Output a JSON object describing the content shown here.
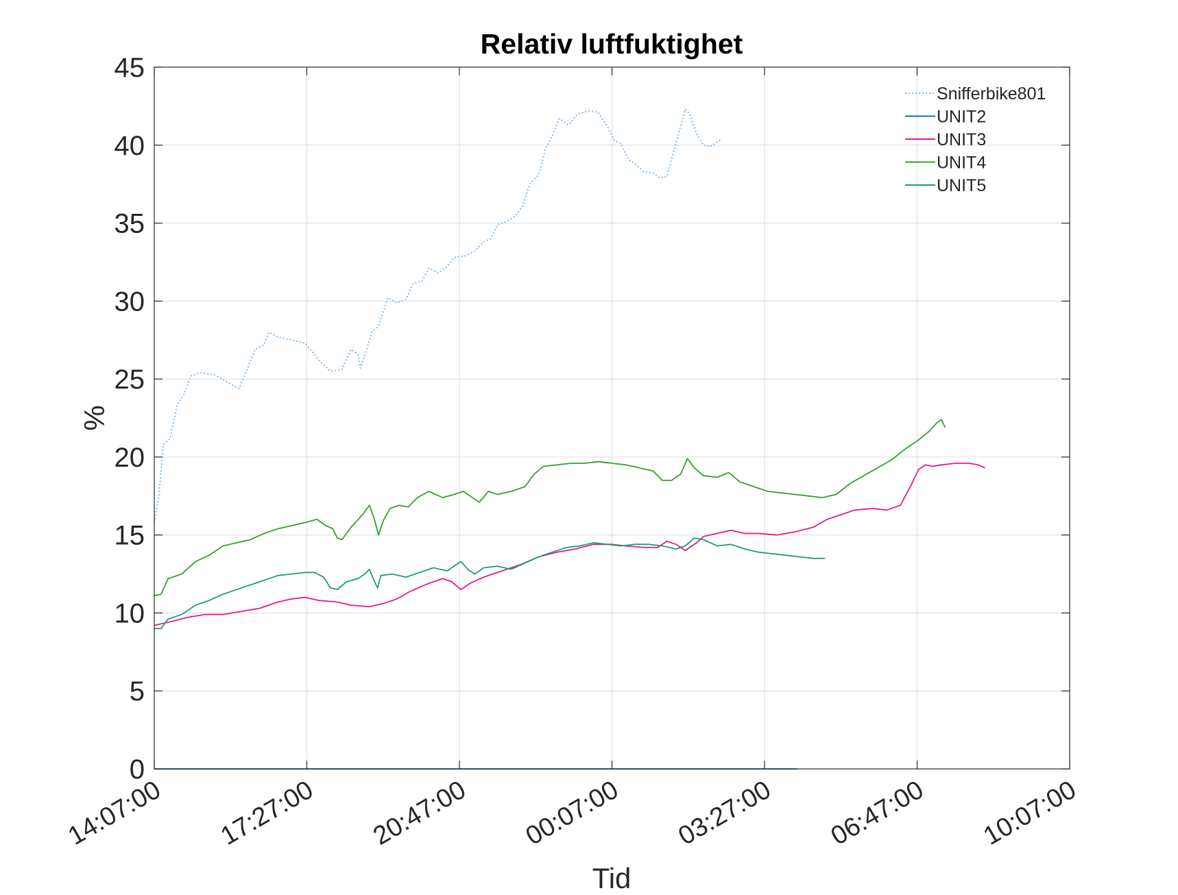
{
  "chart_data": {
    "type": "line",
    "title": "Relativ luftfuktighet",
    "xlabel": "Tid",
    "ylabel": "%",
    "ylim": [
      0,
      45
    ],
    "xlim": [
      "14:07:00",
      "10:07:00 (+1 day)"
    ],
    "x_unit": "hours elapsed since 14:07:00",
    "x_ticks": [
      {
        "label": "14:07:00",
        "value": 0
      },
      {
        "label": "17:27:00",
        "value": 3.333
      },
      {
        "label": "20:47:00",
        "value": 6.667
      },
      {
        "label": "00:07:00",
        "value": 10
      },
      {
        "label": "03:27:00",
        "value": 13.333
      },
      {
        "label": "06:47:00",
        "value": 16.667
      },
      {
        "label": "10:07:00",
        "value": 20
      }
    ],
    "y_ticks": [
      0,
      5,
      10,
      15,
      20,
      25,
      30,
      35,
      40,
      45
    ],
    "grid": true,
    "legend_position": "top-right",
    "series": [
      {
        "name": "Snifferbike801",
        "color": "#7fb8e8",
        "style": "dotted",
        "points": [
          [
            0,
            15.8
          ],
          [
            0.1,
            17.5
          ],
          [
            0.2,
            20.8
          ],
          [
            0.35,
            21.2
          ],
          [
            0.5,
            23.4
          ],
          [
            0.65,
            24.0
          ],
          [
            0.8,
            25.2
          ],
          [
            1.0,
            25.4
          ],
          [
            1.3,
            25.3
          ],
          [
            1.6,
            24.8
          ],
          [
            1.85,
            24.4
          ],
          [
            2.0,
            25.4
          ],
          [
            2.2,
            26.9
          ],
          [
            2.4,
            27.2
          ],
          [
            2.5,
            28.0
          ],
          [
            2.7,
            27.7
          ],
          [
            3.0,
            27.5
          ],
          [
            3.3,
            27.3
          ],
          [
            3.6,
            26.2
          ],
          [
            3.85,
            25.5
          ],
          [
            4.1,
            25.6
          ],
          [
            4.2,
            26.3
          ],
          [
            4.3,
            26.9
          ],
          [
            4.45,
            26.6
          ],
          [
            4.5,
            25.7
          ],
          [
            4.6,
            26.5
          ],
          [
            4.75,
            28.0
          ],
          [
            4.9,
            28.4
          ],
          [
            5.0,
            29.3
          ],
          [
            5.1,
            30.2
          ],
          [
            5.3,
            29.9
          ],
          [
            5.5,
            30.1
          ],
          [
            5.65,
            31.1
          ],
          [
            5.85,
            31.3
          ],
          [
            6.0,
            32.1
          ],
          [
            6.2,
            31.8
          ],
          [
            6.4,
            32.2
          ],
          [
            6.55,
            32.8
          ],
          [
            6.8,
            32.9
          ],
          [
            7.0,
            33.2
          ],
          [
            7.2,
            33.8
          ],
          [
            7.35,
            34.0
          ],
          [
            7.5,
            34.9
          ],
          [
            7.7,
            35.1
          ],
          [
            7.9,
            35.5
          ],
          [
            8.05,
            36.1
          ],
          [
            8.2,
            37.5
          ],
          [
            8.4,
            38.1
          ],
          [
            8.55,
            39.8
          ],
          [
            8.7,
            40.6
          ],
          [
            8.85,
            41.7
          ],
          [
            9.05,
            41.3
          ],
          [
            9.25,
            42.0
          ],
          [
            9.5,
            42.2
          ],
          [
            9.7,
            42.1
          ],
          [
            9.9,
            41.2
          ],
          [
            10.05,
            40.3
          ],
          [
            10.2,
            40.1
          ],
          [
            10.35,
            39.1
          ],
          [
            10.5,
            38.8
          ],
          [
            10.7,
            38.3
          ],
          [
            10.9,
            38.2
          ],
          [
            11.05,
            37.9
          ],
          [
            11.2,
            38.0
          ],
          [
            11.35,
            39.6
          ],
          [
            11.5,
            41.2
          ],
          [
            11.6,
            42.3
          ],
          [
            11.7,
            42.0
          ],
          [
            11.85,
            40.7
          ],
          [
            12.0,
            40.0
          ],
          [
            12.15,
            39.9
          ],
          [
            12.3,
            40.2
          ],
          [
            12.4,
            40.4
          ]
        ]
      },
      {
        "name": "UNIT2",
        "color": "#0072bd",
        "style": "solid",
        "points": [
          [
            0,
            0
          ],
          [
            14.05,
            0
          ]
        ]
      },
      {
        "name": "UNIT3",
        "color": "#e6198c",
        "style": "solid",
        "points": [
          [
            0,
            9.2
          ],
          [
            0.3,
            9.4
          ],
          [
            0.7,
            9.7
          ],
          [
            1.1,
            9.9
          ],
          [
            1.5,
            9.9
          ],
          [
            1.9,
            10.1
          ],
          [
            2.3,
            10.3
          ],
          [
            2.7,
            10.7
          ],
          [
            3.0,
            10.9
          ],
          [
            3.3,
            11.0
          ],
          [
            3.6,
            10.8
          ],
          [
            4.0,
            10.7
          ],
          [
            4.3,
            10.5
          ],
          [
            4.7,
            10.4
          ],
          [
            5.0,
            10.6
          ],
          [
            5.3,
            10.9
          ],
          [
            5.6,
            11.4
          ],
          [
            6.0,
            11.9
          ],
          [
            6.3,
            12.2
          ],
          [
            6.5,
            12.0
          ],
          [
            6.7,
            11.5
          ],
          [
            6.9,
            11.9
          ],
          [
            7.2,
            12.3
          ],
          [
            7.6,
            12.7
          ],
          [
            8.0,
            13.1
          ],
          [
            8.4,
            13.6
          ],
          [
            8.8,
            13.9
          ],
          [
            9.2,
            14.1
          ],
          [
            9.6,
            14.4
          ],
          [
            10.0,
            14.4
          ],
          [
            10.3,
            14.3
          ],
          [
            10.7,
            14.2
          ],
          [
            11.0,
            14.2
          ],
          [
            11.2,
            14.6
          ],
          [
            11.4,
            14.4
          ],
          [
            11.6,
            14.0
          ],
          [
            11.85,
            14.5
          ],
          [
            12.0,
            14.9
          ],
          [
            12.3,
            15.1
          ],
          [
            12.6,
            15.3
          ],
          [
            12.9,
            15.1
          ],
          [
            13.2,
            15.1
          ],
          [
            13.6,
            15.0
          ],
          [
            14.0,
            15.2
          ],
          [
            14.4,
            15.5
          ],
          [
            14.7,
            16.0
          ],
          [
            15.0,
            16.3
          ],
          [
            15.3,
            16.6
          ],
          [
            15.7,
            16.7
          ],
          [
            16.0,
            16.6
          ],
          [
            16.3,
            16.9
          ],
          [
            16.5,
            18.0
          ],
          [
            16.7,
            19.2
          ],
          [
            16.85,
            19.5
          ],
          [
            17.0,
            19.4
          ],
          [
            17.2,
            19.5
          ],
          [
            17.5,
            19.6
          ],
          [
            17.8,
            19.6
          ],
          [
            18.0,
            19.5
          ],
          [
            18.15,
            19.3
          ]
        ]
      },
      {
        "name": "UNIT4",
        "color": "#33a02c",
        "style": "solid",
        "points": [
          [
            0,
            11.1
          ],
          [
            0.15,
            11.2
          ],
          [
            0.3,
            12.2
          ],
          [
            0.6,
            12.5
          ],
          [
            0.9,
            13.3
          ],
          [
            1.2,
            13.7
          ],
          [
            1.5,
            14.3
          ],
          [
            1.8,
            14.5
          ],
          [
            2.1,
            14.7
          ],
          [
            2.4,
            15.1
          ],
          [
            2.7,
            15.4
          ],
          [
            3.0,
            15.6
          ],
          [
            3.3,
            15.8
          ],
          [
            3.55,
            16.0
          ],
          [
            3.75,
            15.6
          ],
          [
            3.9,
            15.4
          ],
          [
            4.0,
            14.8
          ],
          [
            4.1,
            14.7
          ],
          [
            4.3,
            15.5
          ],
          [
            4.55,
            16.3
          ],
          [
            4.7,
            16.9
          ],
          [
            4.8,
            16.1
          ],
          [
            4.9,
            15.0
          ],
          [
            5.0,
            15.9
          ],
          [
            5.15,
            16.7
          ],
          [
            5.35,
            16.9
          ],
          [
            5.55,
            16.8
          ],
          [
            5.75,
            17.4
          ],
          [
            6.0,
            17.8
          ],
          [
            6.3,
            17.4
          ],
          [
            6.55,
            17.6
          ],
          [
            6.75,
            17.8
          ],
          [
            6.9,
            17.5
          ],
          [
            7.1,
            17.1
          ],
          [
            7.3,
            17.8
          ],
          [
            7.5,
            17.6
          ],
          [
            7.8,
            17.8
          ],
          [
            8.1,
            18.1
          ],
          [
            8.3,
            18.9
          ],
          [
            8.5,
            19.4
          ],
          [
            8.8,
            19.5
          ],
          [
            9.1,
            19.6
          ],
          [
            9.4,
            19.6
          ],
          [
            9.7,
            19.7
          ],
          [
            10.0,
            19.6
          ],
          [
            10.3,
            19.5
          ],
          [
            10.6,
            19.3
          ],
          [
            10.9,
            19.1
          ],
          [
            11.1,
            18.5
          ],
          [
            11.3,
            18.5
          ],
          [
            11.5,
            18.9
          ],
          [
            11.65,
            19.9
          ],
          [
            11.8,
            19.3
          ],
          [
            12.0,
            18.8
          ],
          [
            12.3,
            18.7
          ],
          [
            12.55,
            19.0
          ],
          [
            12.8,
            18.4
          ],
          [
            13.1,
            18.1
          ],
          [
            13.4,
            17.8
          ],
          [
            13.7,
            17.7
          ],
          [
            14.0,
            17.6
          ],
          [
            14.3,
            17.5
          ],
          [
            14.6,
            17.4
          ],
          [
            14.9,
            17.6
          ],
          [
            15.2,
            18.3
          ],
          [
            15.5,
            18.8
          ],
          [
            15.8,
            19.3
          ],
          [
            16.1,
            19.8
          ],
          [
            16.4,
            20.5
          ],
          [
            16.7,
            21.1
          ],
          [
            16.95,
            21.7
          ],
          [
            17.1,
            22.2
          ],
          [
            17.2,
            22.4
          ],
          [
            17.28,
            21.9
          ]
        ]
      },
      {
        "name": "UNIT5",
        "color": "#1b9e77",
        "style": "solid",
        "points": [
          [
            0,
            9.0
          ],
          [
            0.15,
            9.0
          ],
          [
            0.3,
            9.6
          ],
          [
            0.6,
            9.9
          ],
          [
            0.9,
            10.5
          ],
          [
            1.2,
            10.8
          ],
          [
            1.5,
            11.2
          ],
          [
            1.8,
            11.5
          ],
          [
            2.1,
            11.8
          ],
          [
            2.4,
            12.1
          ],
          [
            2.7,
            12.4
          ],
          [
            3.0,
            12.5
          ],
          [
            3.3,
            12.6
          ],
          [
            3.5,
            12.6
          ],
          [
            3.7,
            12.3
          ],
          [
            3.85,
            11.6
          ],
          [
            4.0,
            11.5
          ],
          [
            4.2,
            12.0
          ],
          [
            4.45,
            12.2
          ],
          [
            4.6,
            12.5
          ],
          [
            4.7,
            12.8
          ],
          [
            4.8,
            12.1
          ],
          [
            4.88,
            11.6
          ],
          [
            4.95,
            12.4
          ],
          [
            5.2,
            12.5
          ],
          [
            5.5,
            12.3
          ],
          [
            5.8,
            12.6
          ],
          [
            6.1,
            12.9
          ],
          [
            6.4,
            12.7
          ],
          [
            6.6,
            13.1
          ],
          [
            6.7,
            13.3
          ],
          [
            6.85,
            12.8
          ],
          [
            7.0,
            12.5
          ],
          [
            7.2,
            12.9
          ],
          [
            7.5,
            13.0
          ],
          [
            7.8,
            12.8
          ],
          [
            8.1,
            13.2
          ],
          [
            8.4,
            13.6
          ],
          [
            8.7,
            13.9
          ],
          [
            9.0,
            14.2
          ],
          [
            9.3,
            14.3
          ],
          [
            9.6,
            14.5
          ],
          [
            9.9,
            14.4
          ],
          [
            10.2,
            14.3
          ],
          [
            10.5,
            14.4
          ],
          [
            10.8,
            14.4
          ],
          [
            11.1,
            14.3
          ],
          [
            11.4,
            14.1
          ],
          [
            11.6,
            14.3
          ],
          [
            11.8,
            14.8
          ],
          [
            12.0,
            14.7
          ],
          [
            12.3,
            14.3
          ],
          [
            12.6,
            14.4
          ],
          [
            12.9,
            14.1
          ],
          [
            13.2,
            13.9
          ],
          [
            13.5,
            13.8
          ],
          [
            13.8,
            13.7
          ],
          [
            14.1,
            13.6
          ],
          [
            14.4,
            13.5
          ],
          [
            14.65,
            13.5
          ]
        ]
      }
    ]
  }
}
